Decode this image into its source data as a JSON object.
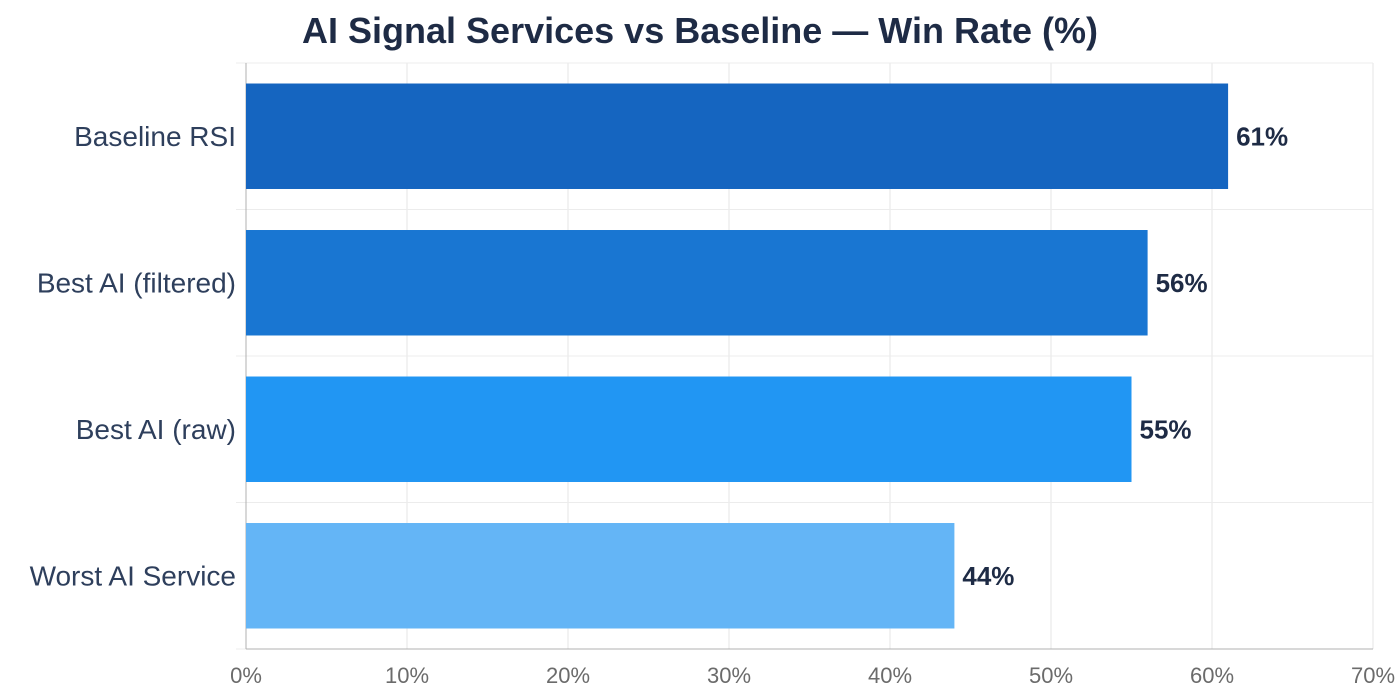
{
  "chart_data": {
    "type": "bar",
    "orientation": "horizontal",
    "title": "AI Signal Services vs Baseline — Win Rate (%)",
    "categories": [
      "Baseline RSI",
      "Best AI (filtered)",
      "Best AI (raw)",
      "Worst AI Service"
    ],
    "values": [
      61,
      56,
      55,
      44
    ],
    "data_labels": [
      "61%",
      "56%",
      "55%",
      "44%"
    ],
    "colors": [
      "#1565c0",
      "#1976d2",
      "#2196f3",
      "#64b5f6"
    ],
    "xlim": [
      0,
      70
    ],
    "xticks": [
      0,
      10,
      20,
      30,
      40,
      50,
      60,
      70
    ],
    "xtick_labels": [
      "0%",
      "10%",
      "20%",
      "30%",
      "40%",
      "50%",
      "60%",
      "70%"
    ],
    "xlabel": "",
    "ylabel": "",
    "grid": true,
    "legend": "none"
  }
}
